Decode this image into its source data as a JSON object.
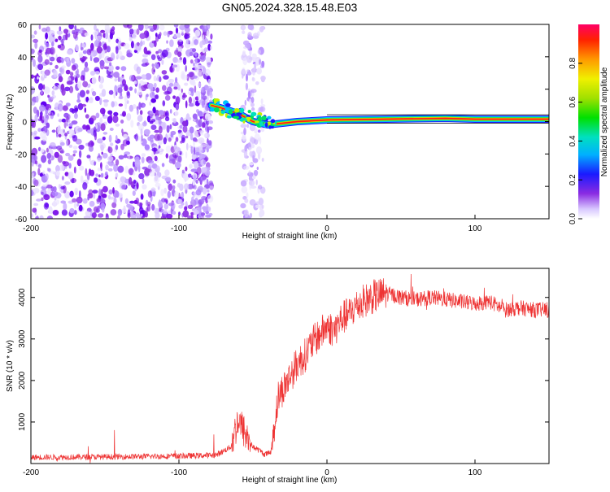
{
  "title": "GN05.2024.328.15.48.E03",
  "chart_data": [
    {
      "type": "heatmap",
      "xlabel": "Height of straight line (km)",
      "ylabel": "Frequency (Hz)",
      "xlim": [
        -200,
        150
      ],
      "ylim": [
        -60,
        60
      ],
      "xticks": [
        "-200",
        "-100",
        "0",
        "100"
      ],
      "yticks": [
        "60",
        "40",
        "20",
        "0",
        "-20",
        "-40",
        "-60"
      ],
      "colorbar": {
        "label": "Normalized spectral amplitude",
        "range": [
          0.0,
          1.0
        ],
        "ticks": [
          "0.0",
          "0.2",
          "0.4",
          "0.6",
          "0.8"
        ]
      },
      "features": {
        "noise_region_x": [
          -200,
          -78
        ],
        "noise_patch_x": [
          -57,
          -43
        ],
        "signal_track": {
          "x": [
            -78,
            -70,
            -60,
            -50,
            -40,
            -30,
            -20,
            0,
            40,
            80,
            100,
            150
          ],
          "y": [
            10,
            8,
            5,
            0,
            -2,
            -1,
            0,
            1,
            1.5,
            2,
            1.5,
            1.5
          ]
        }
      }
    },
    {
      "type": "line",
      "xlabel": "Height of straight line (km)",
      "ylabel": "SNR (10 * v/v)",
      "xlim": [
        -200,
        150
      ],
      "ylim": [
        0,
        4700
      ],
      "xticks": [
        "-200",
        "-100",
        "0",
        "100"
      ],
      "yticks": [
        "1000",
        "2000",
        "3000",
        "4000"
      ],
      "color": "#ee3333",
      "series": [
        {
          "x": [
            -200,
            -150,
            -100,
            -75,
            -65,
            -60,
            -55,
            -50,
            -45,
            -42,
            -38,
            -33,
            -28,
            -25,
            -20,
            -15,
            -10,
            -5,
            0,
            5,
            10,
            15,
            20,
            25,
            30,
            35,
            40,
            45,
            50,
            60,
            70,
            80,
            90,
            100,
            110,
            115,
            120,
            130,
            140,
            150
          ],
          "y": [
            150,
            160,
            180,
            200,
            400,
            1050,
            700,
            400,
            300,
            220,
            260,
            1600,
            1900,
            2100,
            2400,
            2600,
            2900,
            3100,
            3300,
            3200,
            3500,
            3600,
            3800,
            3900,
            4000,
            4050,
            4100,
            4050,
            4000,
            3950,
            4000,
            3950,
            3900,
            3850,
            3900,
            3800,
            3700,
            3750,
            3700,
            3700
          ]
        }
      ]
    }
  ]
}
